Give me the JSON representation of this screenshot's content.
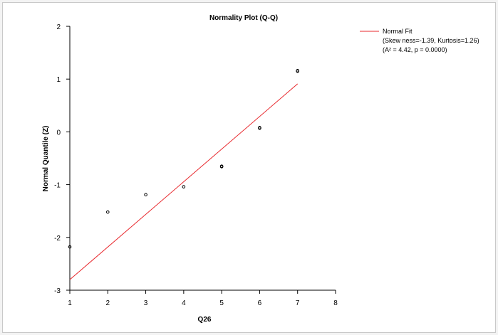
{
  "chart_data": {
    "type": "scatter",
    "title": "Normality Plot (Q-Q)",
    "xlabel": "Q26",
    "ylabel": "Normal Quantile (Z)",
    "xlim": [
      1,
      8
    ],
    "ylim": [
      -3,
      2
    ],
    "xticks": [
      "1",
      "2",
      "3",
      "4",
      "5",
      "6",
      "7",
      "8"
    ],
    "yticks": [
      "2",
      "1",
      "0",
      "-1",
      "-2",
      "-3"
    ],
    "grid": false,
    "legend_position": "top-right",
    "series": [
      {
        "type": "scatter",
        "x": [
          1,
          2,
          3,
          4,
          5,
          5,
          6,
          6,
          7,
          7
        ],
        "y": [
          -2.18,
          -1.52,
          -1.19,
          -1.04,
          -0.65,
          -0.66,
          0.07,
          0.08,
          1.16,
          1.15
        ]
      },
      {
        "name": "Normal Fit",
        "type": "line",
        "x": [
          1,
          7
        ],
        "y": [
          -2.8,
          0.91
        ],
        "color": "#e8282d"
      }
    ],
    "legend": {
      "label": "Normal Fit",
      "line2": "(Skew ness=-1.39, Kurtosis=1.26)",
      "line3": "(A² = 4.42, p = 0.0000)"
    },
    "colors": {
      "fit_line": "#e8282d",
      "points": "#000000",
      "axes": "#000000"
    }
  }
}
